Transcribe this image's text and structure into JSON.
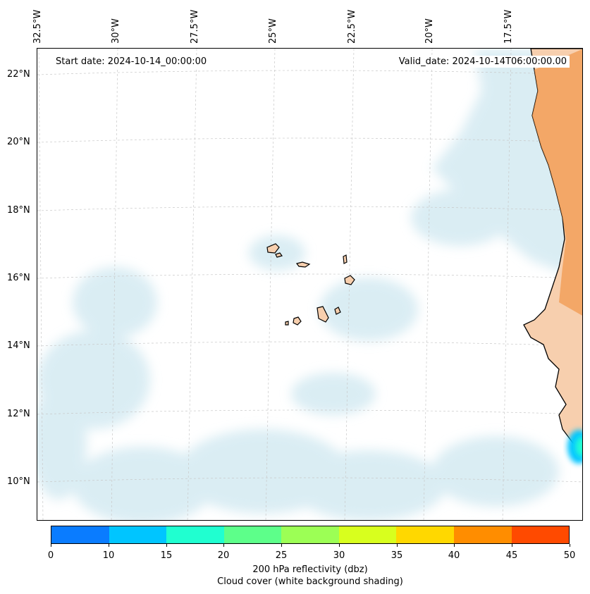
{
  "map": {
    "start_date": "Start date: 2024-10-14_00:00:00",
    "valid_date": "Valid_date: 2024-10-14T06:00:00.00",
    "lon_labels": [
      "32.5°W",
      "30°W",
      "27.5°W",
      "25°W",
      "22.5°W",
      "20°W",
      "17.5°W"
    ],
    "lat_labels": [
      "22°N",
      "20°N",
      "18°N",
      "16°N",
      "14°N",
      "12°N",
      "10°N"
    ],
    "land_color": "#f7cfae",
    "coast_land_color": "#f29a4f",
    "cloud_color": "#d4eaf2"
  },
  "colorbar": {
    "colors": [
      "#0a7cff",
      "#00c5ff",
      "#20ffd0",
      "#5dff8a",
      "#9cff55",
      "#d8ff1e",
      "#ffd800",
      "#ff8d00",
      "#ff4a00"
    ],
    "ticks": [
      "0",
      "10",
      "15",
      "20",
      "25",
      "30",
      "35",
      "40",
      "45",
      "50"
    ],
    "label_line1": "200 hPa reflectivity (dbz)",
    "label_line2": "Cloud cover (white background shading)"
  }
}
